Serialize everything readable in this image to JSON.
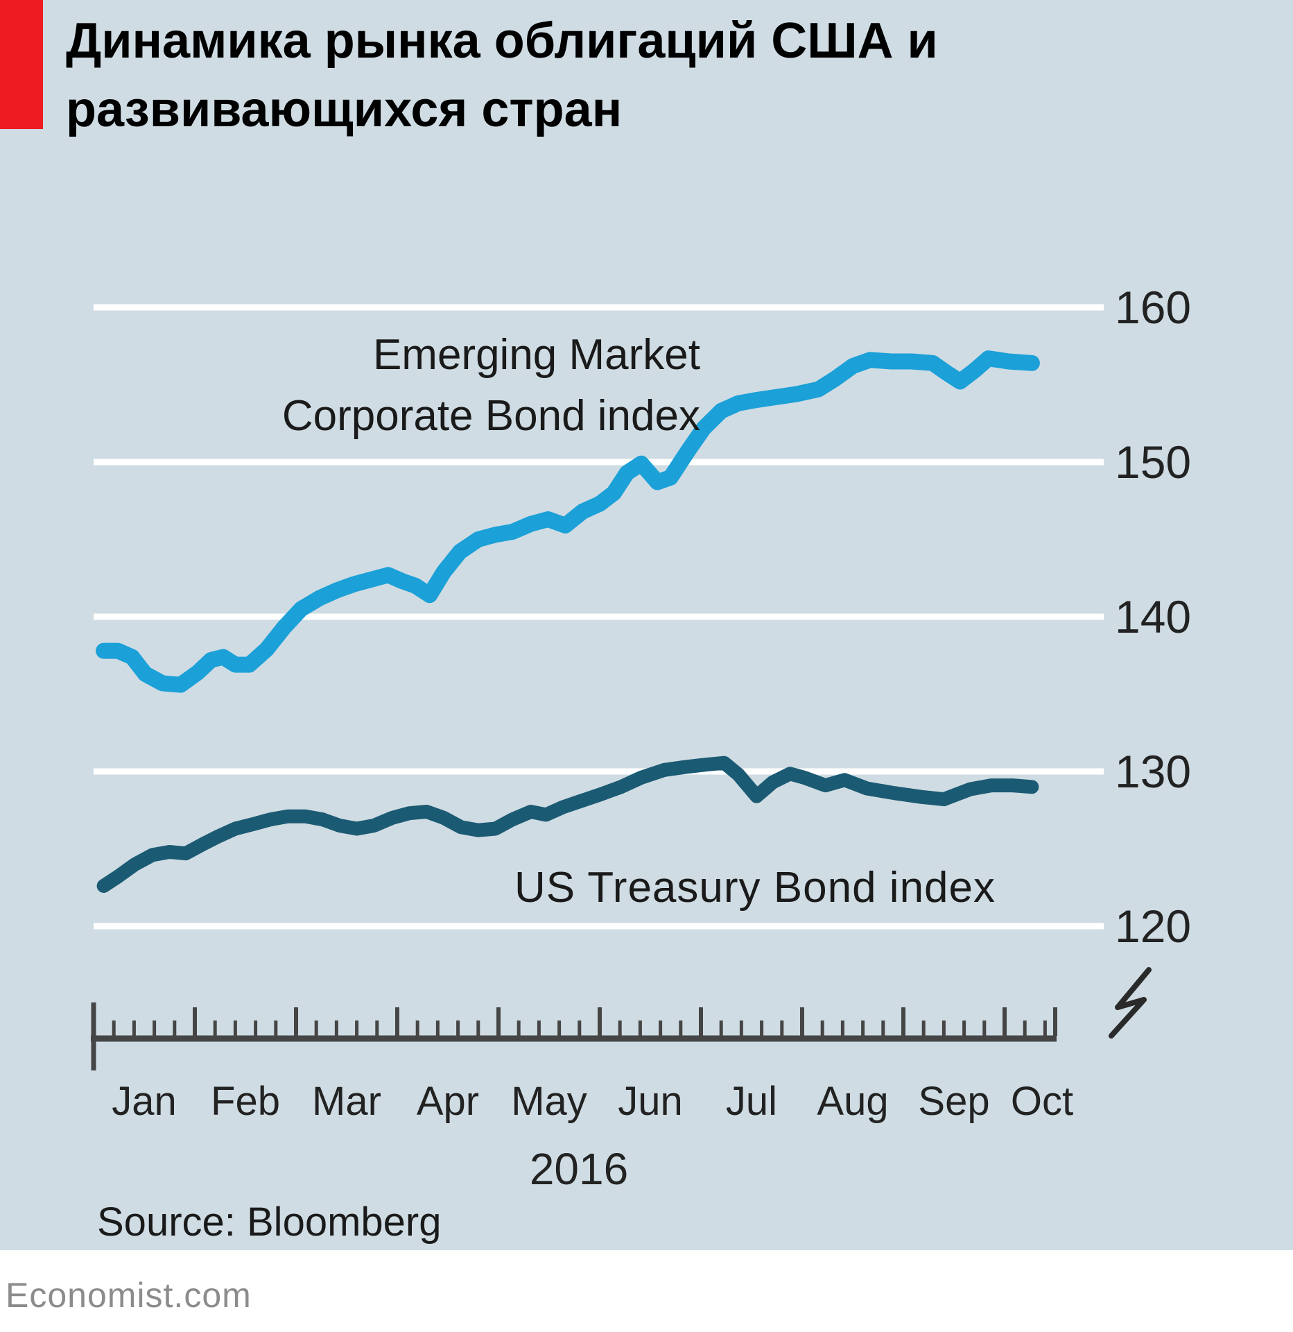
{
  "title": {
    "line1": "Динамика рынка облигаций США и",
    "line2": "развивающихся стран"
  },
  "series_labels": {
    "em_line1": "Emerging Market",
    "em_line2": "Corporate Bond index",
    "us": "US Treasury Bond index"
  },
  "year_label": "2016",
  "source": "Source: Bloomberg",
  "footer": "Economist.com",
  "colors": {
    "background": "#cfdce3",
    "red_tab": "#ee1b23",
    "em_line": "#1ba0d8",
    "us_line": "#1b5a73",
    "gridline": "#ffffff",
    "axis": "#454545",
    "text": "#1f1f1f",
    "footer_text": "#8c8c8c",
    "footer_bg": "#ffffff"
  },
  "y_axis": {
    "tick_labels": [
      "160",
      "150",
      "140",
      "130",
      "120"
    ],
    "tick_values": [
      160,
      150,
      140,
      130,
      120
    ],
    "has_axis_break": true
  },
  "x_axis": {
    "months": [
      "Jan",
      "Feb",
      "Mar",
      "Apr",
      "May",
      "Jun",
      "Jul",
      "Aug",
      "Sep",
      "Oct"
    ],
    "minor_ticks_per_month": 4,
    "year": "2016"
  },
  "chart_data": {
    "type": "line",
    "title": "Динамика рынка облигаций США и развивающихся стран",
    "x_unit": "months since 1 Jan 2016",
    "x_tick_labels": [
      "Jan",
      "Feb",
      "Mar",
      "Apr",
      "May",
      "Jun",
      "Jul",
      "Aug",
      "Sep",
      "Oct"
    ],
    "ylim": [
      120,
      160
    ],
    "y_gridlines": [
      120,
      130,
      140,
      150,
      160
    ],
    "grid": true,
    "axis_break": true,
    "legend_position": "inline-annotations",
    "source": "Bloomberg",
    "series": [
      {
        "name": "Emerging Market Corporate Bond index",
        "color": "#1ba0d8",
        "points": [
          [
            0.1,
            137.8
          ],
          [
            0.24,
            137.8
          ],
          [
            0.38,
            137.4
          ],
          [
            0.51,
            136.3
          ],
          [
            0.68,
            135.7
          ],
          [
            0.86,
            135.6
          ],
          [
            1.03,
            136.4
          ],
          [
            1.16,
            137.2
          ],
          [
            1.28,
            137.4
          ],
          [
            1.4,
            136.9
          ],
          [
            1.54,
            136.9
          ],
          [
            1.71,
            137.9
          ],
          [
            1.88,
            139.3
          ],
          [
            2.05,
            140.5
          ],
          [
            2.23,
            141.2
          ],
          [
            2.4,
            141.7
          ],
          [
            2.57,
            142.1
          ],
          [
            2.74,
            142.4
          ],
          [
            2.91,
            142.7
          ],
          [
            3.05,
            142.3
          ],
          [
            3.18,
            142.0
          ],
          [
            3.32,
            141.4
          ],
          [
            3.46,
            142.9
          ],
          [
            3.62,
            144.2
          ],
          [
            3.8,
            145.0
          ],
          [
            3.97,
            145.3
          ],
          [
            4.14,
            145.5
          ],
          [
            4.32,
            146.0
          ],
          [
            4.49,
            146.3
          ],
          [
            4.66,
            145.9
          ],
          [
            4.83,
            146.8
          ],
          [
            5.0,
            147.3
          ],
          [
            5.14,
            148.0
          ],
          [
            5.27,
            149.3
          ],
          [
            5.41,
            149.9
          ],
          [
            5.57,
            148.7
          ],
          [
            5.7,
            149.0
          ],
          [
            5.88,
            150.8
          ],
          [
            6.03,
            152.2
          ],
          [
            6.2,
            153.3
          ],
          [
            6.37,
            153.8
          ],
          [
            6.54,
            154.0
          ],
          [
            6.75,
            154.2
          ],
          [
            6.95,
            154.4
          ],
          [
            7.16,
            154.7
          ],
          [
            7.33,
            155.4
          ],
          [
            7.5,
            156.2
          ],
          [
            7.67,
            156.6
          ],
          [
            7.88,
            156.5
          ],
          [
            8.08,
            156.5
          ],
          [
            8.29,
            156.4
          ],
          [
            8.42,
            155.8
          ],
          [
            8.56,
            155.2
          ],
          [
            8.7,
            155.9
          ],
          [
            8.84,
            156.7
          ],
          [
            9.04,
            156.5
          ],
          [
            9.27,
            156.4
          ]
        ]
      },
      {
        "name": "US Treasury Bond index",
        "color": "#1b5a73",
        "points": [
          [
            0.1,
            122.6
          ],
          [
            0.24,
            123.2
          ],
          [
            0.41,
            124.0
          ],
          [
            0.58,
            124.6
          ],
          [
            0.75,
            124.8
          ],
          [
            0.91,
            124.7
          ],
          [
            1.08,
            125.3
          ],
          [
            1.23,
            125.8
          ],
          [
            1.4,
            126.3
          ],
          [
            1.58,
            126.6
          ],
          [
            1.75,
            126.9
          ],
          [
            1.92,
            127.1
          ],
          [
            2.09,
            127.1
          ],
          [
            2.26,
            126.9
          ],
          [
            2.43,
            126.5
          ],
          [
            2.6,
            126.3
          ],
          [
            2.77,
            126.5
          ],
          [
            2.95,
            127.0
          ],
          [
            3.12,
            127.3
          ],
          [
            3.29,
            127.4
          ],
          [
            3.46,
            127.0
          ],
          [
            3.63,
            126.4
          ],
          [
            3.8,
            126.2
          ],
          [
            3.97,
            126.3
          ],
          [
            4.14,
            126.9
          ],
          [
            4.32,
            127.4
          ],
          [
            4.47,
            127.2
          ],
          [
            4.64,
            127.7
          ],
          [
            4.82,
            128.1
          ],
          [
            5.0,
            128.5
          ],
          [
            5.21,
            129.0
          ],
          [
            5.41,
            129.6
          ],
          [
            5.64,
            130.1
          ],
          [
            5.86,
            130.3
          ],
          [
            6.06,
            130.45
          ],
          [
            6.23,
            130.55
          ],
          [
            6.37,
            129.8
          ],
          [
            6.55,
            128.4
          ],
          [
            6.71,
            129.3
          ],
          [
            6.88,
            129.85
          ],
          [
            7.02,
            129.6
          ],
          [
            7.23,
            129.1
          ],
          [
            7.42,
            129.45
          ],
          [
            7.64,
            128.9
          ],
          [
            7.91,
            128.6
          ],
          [
            8.18,
            128.35
          ],
          [
            8.4,
            128.2
          ],
          [
            8.66,
            128.85
          ],
          [
            8.87,
            129.1
          ],
          [
            9.08,
            129.1
          ],
          [
            9.27,
            129.0
          ]
        ]
      }
    ]
  }
}
